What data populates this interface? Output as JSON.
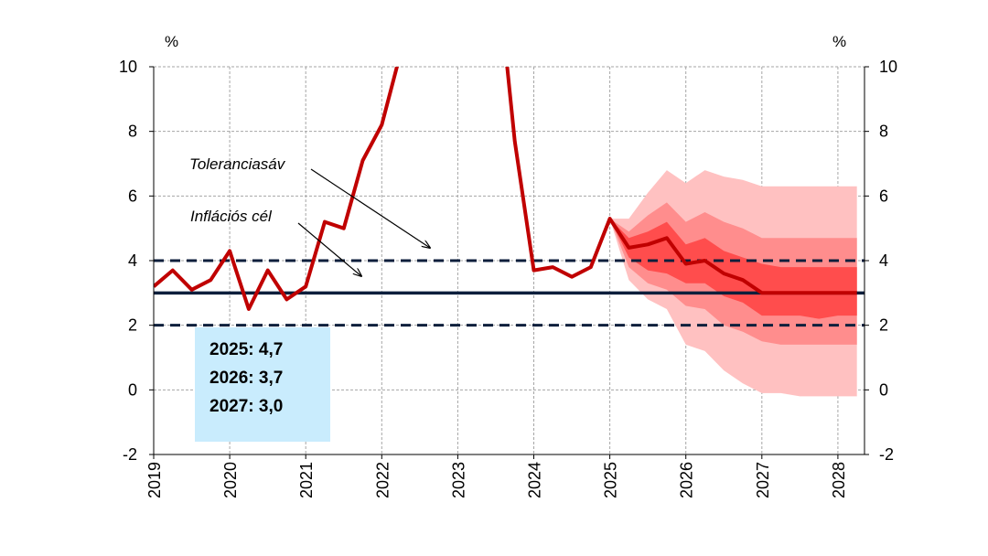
{
  "chart_data": {
    "type": "line",
    "ylim": [
      -2,
      10
    ],
    "yticks": [
      "10",
      "8",
      "6",
      "4",
      "2",
      "0",
      "-2"
    ],
    "yunit_left": "%",
    "yunit_right": "%",
    "xticks": [
      "2019",
      "2020",
      "2021",
      "2022",
      "2023",
      "2024",
      "2025",
      "2026",
      "2027",
      "2028"
    ],
    "grid": true,
    "inflation_target": 3.0,
    "tolerance_band": [
      2.0,
      4.0
    ],
    "annotations": {
      "tolerance": "Toleranciasáv",
      "target": "Inflációs cél"
    },
    "info_box": [
      "2025: 4,7",
      "2026: 3,7",
      "2027: 3,0"
    ],
    "series": {
      "x": [
        2019.0,
        2019.25,
        2019.5,
        2019.75,
        2020.0,
        2020.25,
        2020.5,
        2020.75,
        2021.0,
        2021.25,
        2021.5,
        2021.75,
        2022.0,
        2022.2,
        2023.65,
        2023.75,
        2024.0,
        2024.25,
        2024.5,
        2024.75,
        2025.0,
        2025.25,
        2025.5,
        2025.75,
        2026.0,
        2026.25,
        2026.5,
        2026.75,
        2027.0,
        2027.25,
        2027.5,
        2027.75,
        2028.0,
        2028.25
      ],
      "y": [
        3.2,
        3.7,
        3.1,
        3.4,
        4.3,
        2.5,
        3.7,
        2.8,
        3.2,
        5.2,
        5.0,
        7.1,
        8.2,
        10.0,
        10.0,
        7.7,
        3.7,
        3.8,
        3.5,
        3.8,
        5.3,
        4.4,
        4.5,
        4.7,
        3.9,
        4.0,
        3.6,
        3.4,
        3.0,
        3.0,
        3.0,
        3.0,
        3.0,
        3.0
      ]
    },
    "fan": {
      "x": [
        2025.0,
        2025.25,
        2025.5,
        2025.75,
        2026.0,
        2026.25,
        2026.5,
        2026.75,
        2027.0,
        2027.25,
        2027.5,
        2027.75,
        2028.0,
        2028.25
      ],
      "outer_hi": [
        5.3,
        5.3,
        6.1,
        6.8,
        6.4,
        6.8,
        6.6,
        6.5,
        6.3,
        6.3,
        6.3,
        6.3,
        6.3,
        6.3
      ],
      "mid_hi": [
        5.3,
        4.9,
        5.4,
        5.8,
        5.2,
        5.5,
        5.2,
        5.0,
        4.7,
        4.7,
        4.7,
        4.7,
        4.7,
        4.7
      ],
      "inner_hi": [
        5.3,
        4.7,
        4.9,
        5.2,
        4.5,
        4.7,
        4.3,
        4.1,
        3.9,
        3.8,
        3.8,
        3.8,
        3.8,
        3.8
      ],
      "inner_lo": [
        5.3,
        4.1,
        3.7,
        3.6,
        3.3,
        3.3,
        2.9,
        2.7,
        2.3,
        2.3,
        2.3,
        2.2,
        2.3,
        2.3
      ],
      "mid_lo": [
        5.3,
        3.8,
        3.3,
        3.1,
        2.6,
        2.5,
        2.0,
        1.8,
        1.5,
        1.4,
        1.4,
        1.4,
        1.4,
        1.4
      ],
      "outer_lo": [
        5.3,
        3.4,
        2.8,
        2.5,
        1.4,
        1.2,
        0.6,
        0.2,
        -0.1,
        -0.1,
        -0.2,
        -0.2,
        -0.2,
        -0.2
      ]
    },
    "colors": {
      "line": "#c00000",
      "target": "#0d1f3c",
      "band": "#0d1f3c",
      "fan_outer": "#ffc1c1",
      "fan_mid": "#ff8d8d",
      "fan_inner": "#ff4d4d",
      "grid": "#a6a6a6",
      "info_box": "#c9ecfd"
    }
  }
}
